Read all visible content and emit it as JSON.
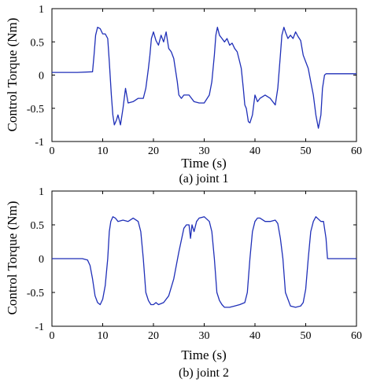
{
  "chart_data": [
    {
      "type": "line",
      "caption": "(a) joint 1",
      "xlabel": "Time (s)",
      "ylabel": "Control Torque (Nm)",
      "xlim": [
        0,
        60
      ],
      "ylim": [
        -1,
        1
      ],
      "xticks": [
        "0",
        "10",
        "20",
        "30",
        "40",
        "50",
        "60"
      ],
      "yticks": [
        "1",
        "0.5",
        "0",
        "-0.5",
        "-1"
      ],
      "line_color": "#1f2fb8",
      "grid": false,
      "series": [
        {
          "x": [
            0,
            5,
            8,
            8.3,
            8.6,
            9,
            9.5,
            10,
            10.5,
            11,
            11.3,
            11.7,
            12,
            12.3,
            12.7,
            13,
            13.5,
            14,
            14.5,
            15,
            16,
            17,
            18,
            18.5,
            19,
            19.3,
            19.6,
            20,
            20.5,
            21,
            21.5,
            22,
            22.5,
            23,
            23.5,
            24,
            24.3,
            24.7,
            25,
            25.5,
            26,
            27,
            28,
            29,
            30,
            31,
            31.5,
            32,
            32.3,
            32.6,
            33,
            33.5,
            34,
            34.5,
            35,
            35.5,
            36,
            36.5,
            37,
            37.3,
            37.7,
            38,
            38.3,
            38.7,
            39,
            39.5,
            40,
            40.5,
            41,
            42,
            43,
            44,
            44.5,
            45,
            45.3,
            45.7,
            46,
            46.5,
            47,
            47.5,
            48,
            48.5,
            49,
            49.5,
            50,
            50.5,
            51,
            51.5,
            52,
            52.5,
            53,
            53.3,
            53.7,
            54,
            55,
            57.5,
            60
          ],
          "y": [
            0.04,
            0.04,
            0.05,
            0.3,
            0.6,
            0.72,
            0.7,
            0.62,
            0.62,
            0.55,
            0.2,
            -0.3,
            -0.6,
            -0.75,
            -0.68,
            -0.6,
            -0.75,
            -0.5,
            -0.2,
            -0.42,
            -0.4,
            -0.35,
            -0.35,
            -0.2,
            0.1,
            0.3,
            0.55,
            0.65,
            0.52,
            0.45,
            0.6,
            0.5,
            0.65,
            0.4,
            0.35,
            0.25,
            0.1,
            -0.1,
            -0.3,
            -0.35,
            -0.3,
            -0.3,
            -0.4,
            -0.42,
            -0.42,
            -0.3,
            -0.1,
            0.3,
            0.6,
            0.72,
            0.6,
            0.55,
            0.5,
            0.55,
            0.45,
            0.48,
            0.4,
            0.35,
            0.2,
            0.1,
            -0.2,
            -0.45,
            -0.5,
            -0.7,
            -0.72,
            -0.6,
            -0.3,
            -0.4,
            -0.35,
            -0.3,
            -0.35,
            -0.45,
            -0.2,
            0.3,
            0.6,
            0.72,
            0.65,
            0.55,
            0.6,
            0.55,
            0.65,
            0.58,
            0.52,
            0.3,
            0.2,
            0.1,
            -0.1,
            -0.3,
            -0.6,
            -0.8,
            -0.6,
            -0.2,
            0.0,
            0.02,
            0.02,
            0.02,
            0.02
          ]
        }
      ]
    },
    {
      "type": "line",
      "caption": "(b) joint 2",
      "xlabel": "Time (s)",
      "ylabel": "Control Torque (Nm)",
      "xlim": [
        0,
        60
      ],
      "ylim": [
        -1,
        1
      ],
      "xticks": [
        "0",
        "10",
        "20",
        "30",
        "40",
        "50",
        "60"
      ],
      "yticks": [
        "1",
        "0.5",
        "0",
        "-0.5",
        "-1"
      ],
      "line_color": "#1f2fb8",
      "grid": false,
      "series": [
        {
          "x": [
            0,
            6,
            7,
            7.5,
            8,
            8.5,
            9,
            9.5,
            10,
            10.5,
            11,
            11.3,
            11.6,
            12,
            12.5,
            13,
            14,
            15,
            16,
            17,
            17.5,
            18,
            18.5,
            19,
            19.5,
            20,
            20.5,
            21,
            22,
            23,
            24,
            25,
            26,
            26.5,
            27,
            27.3,
            27.6,
            28,
            28.5,
            29,
            30,
            31,
            31.5,
            32,
            32.5,
            33,
            33.5,
            34,
            35,
            36,
            37,
            38,
            38.5,
            39,
            39.5,
            40,
            40.5,
            41,
            42,
            43,
            44,
            44.5,
            45,
            45.5,
            46,
            47,
            48,
            49,
            49.5,
            50,
            50.5,
            51,
            51.5,
            52,
            53,
            53.5,
            54,
            54.3,
            55,
            57.5,
            60
          ],
          "y": [
            0.0,
            0.0,
            -0.02,
            -0.1,
            -0.3,
            -0.55,
            -0.65,
            -0.68,
            -0.6,
            -0.4,
            0.0,
            0.4,
            0.55,
            0.62,
            0.6,
            0.55,
            0.57,
            0.55,
            0.6,
            0.55,
            0.4,
            0.0,
            -0.5,
            -0.62,
            -0.68,
            -0.68,
            -0.65,
            -0.68,
            -0.65,
            -0.55,
            -0.3,
            0.1,
            0.45,
            0.5,
            0.5,
            0.3,
            0.5,
            0.4,
            0.55,
            0.6,
            0.62,
            0.55,
            0.4,
            0.0,
            -0.5,
            -0.62,
            -0.68,
            -0.72,
            -0.72,
            -0.7,
            -0.68,
            -0.65,
            -0.5,
            0.0,
            0.4,
            0.55,
            0.6,
            0.6,
            0.55,
            0.55,
            0.57,
            0.52,
            0.3,
            0.0,
            -0.5,
            -0.7,
            -0.72,
            -0.7,
            -0.65,
            -0.45,
            0.0,
            0.4,
            0.55,
            0.62,
            0.55,
            0.55,
            0.3,
            0.0,
            0.0,
            0.0,
            0.0
          ]
        }
      ]
    }
  ]
}
